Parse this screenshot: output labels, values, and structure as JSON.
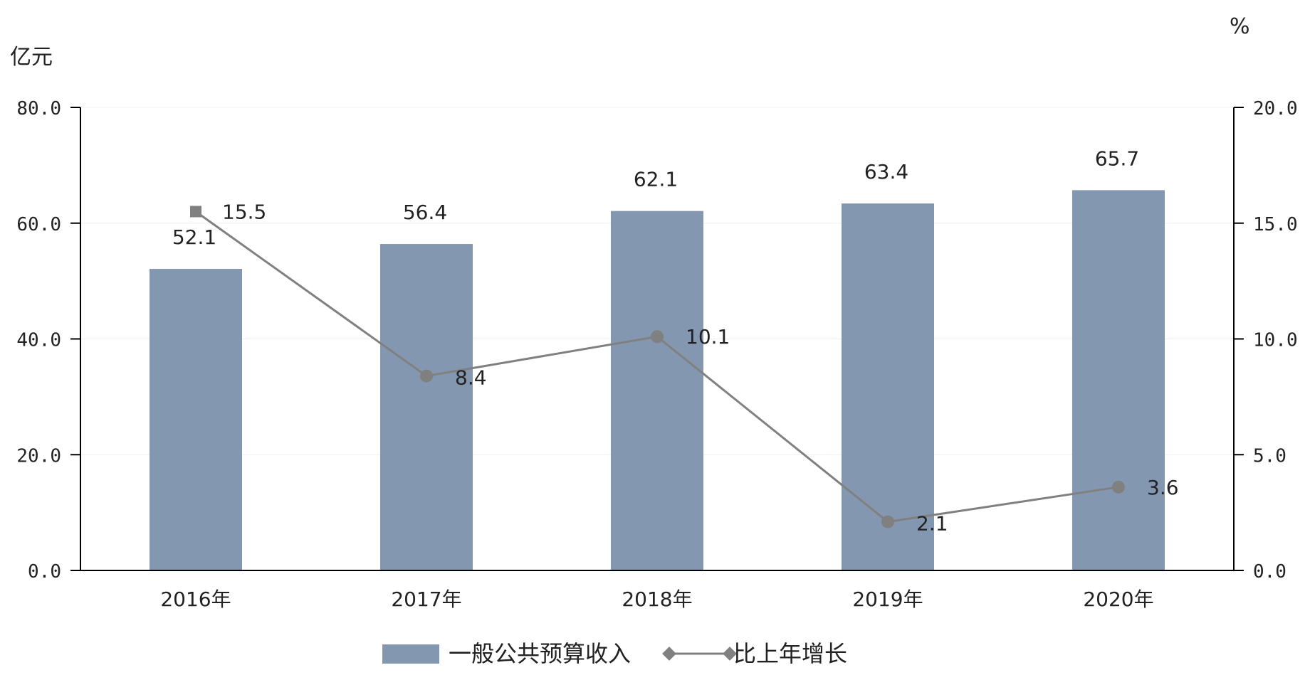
{
  "chart_data": {
    "type": "bar+line",
    "categories": [
      "2016年",
      "2017年",
      "2018年",
      "2019年",
      "2020年"
    ],
    "series": [
      {
        "name": "一般公共预算收入",
        "type": "bar",
        "axis": "left",
        "values": [
          52.1,
          56.4,
          62.1,
          63.4,
          65.7
        ],
        "labels": [
          "52.1",
          "56.4",
          "62.1",
          "63.4",
          "65.7"
        ],
        "color": "#8497b0"
      },
      {
        "name": "比上年增长",
        "type": "line",
        "axis": "right",
        "values": [
          15.5,
          8.4,
          10.1,
          2.1,
          3.6
        ],
        "labels": [
          "15.5",
          "8.4",
          "10.1",
          "2.1",
          "3.6"
        ],
        "color": "#808080"
      }
    ],
    "left_axis": {
      "unit": "亿元",
      "min": 0,
      "max": 80,
      "ticks": [
        "0.0",
        "20.0",
        "40.0",
        "60.0",
        "80.0"
      ]
    },
    "right_axis": {
      "unit": "%",
      "min": 0,
      "max": 20,
      "ticks": [
        "0.0",
        "5.0",
        "10.0",
        "15.0",
        "20.0"
      ]
    },
    "grid": true,
    "legend": "bottom"
  }
}
